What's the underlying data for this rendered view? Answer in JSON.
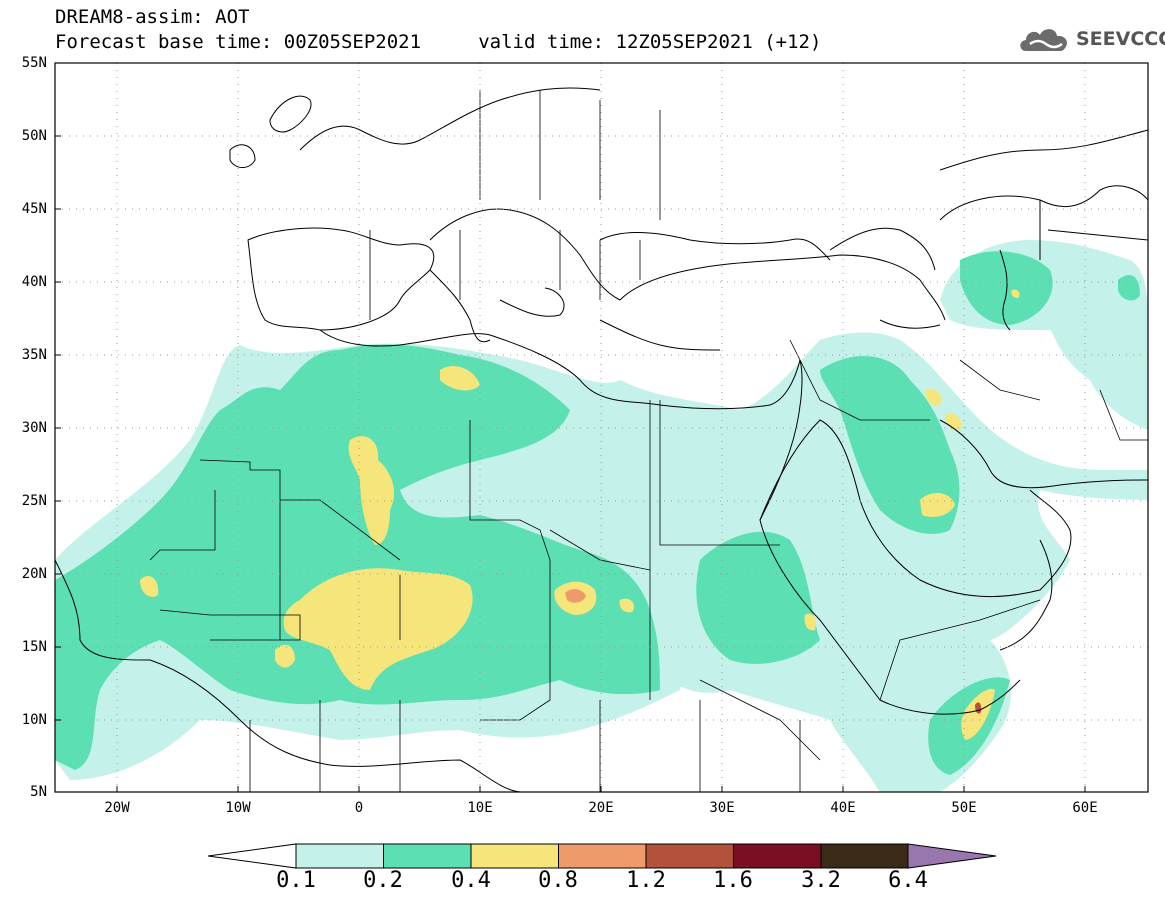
{
  "header": {
    "line1": "DREAM8-assim: AOT",
    "line2": "Forecast base time: 00Z05SEP2021     valid time: 12Z05SEP2021 (+12)",
    "logo_text": "SEEVCCC",
    "logo_icon": "cloud-icon"
  },
  "axes": {
    "lat_labels": [
      "55N",
      "50N",
      "45N",
      "40N",
      "35N",
      "30N",
      "25N",
      "20N",
      "15N",
      "10N",
      "5N"
    ],
    "lon_labels": [
      "20W",
      "10W",
      "0",
      "10E",
      "20E",
      "30E",
      "40E",
      "50E",
      "60E"
    ]
  },
  "colorbar": {
    "labels": [
      "0.1",
      "0.2",
      "0.4",
      "0.8",
      "1.2",
      "1.6",
      "3.2",
      "6.4"
    ],
    "colors": [
      "#c4f2ea",
      "#5ddfb4",
      "#f5e57a",
      "#ee9a6a",
      "#b3513b",
      "#7a0f23",
      "#3b2a16",
      "#9a76ae"
    ]
  },
  "colors": {
    "c1": "#c4f2ea",
    "c2": "#5ddfb4",
    "c3": "#f5e57a",
    "c4": "#ee9a6a",
    "c5": "#b3513b",
    "c6": "#7a0f23"
  }
}
